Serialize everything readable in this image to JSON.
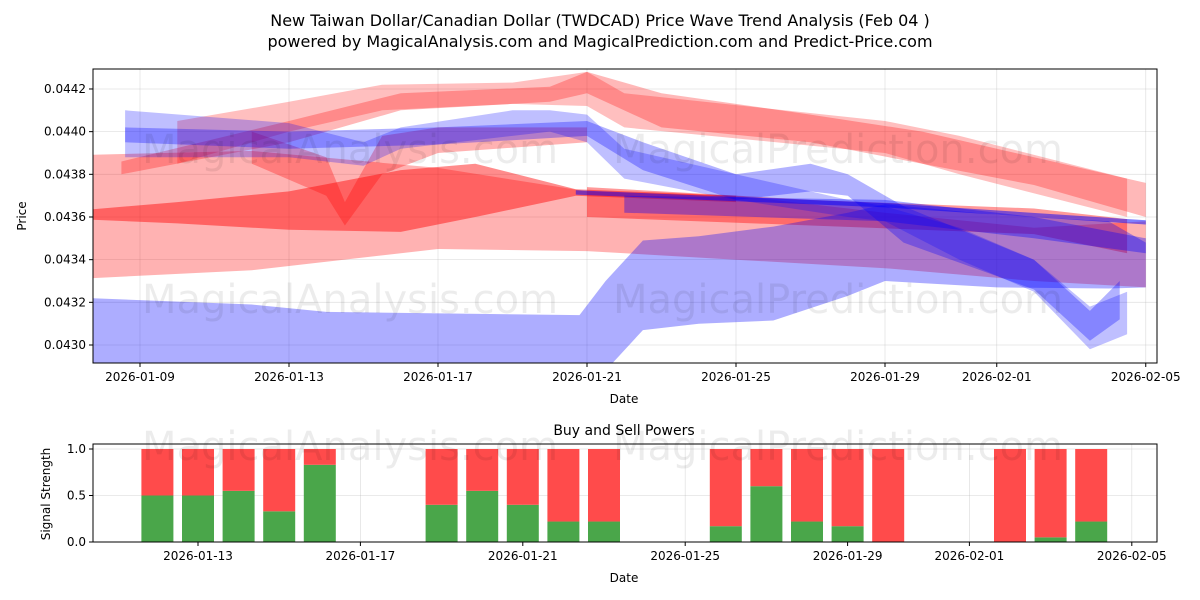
{
  "title_line1": "New Taiwan Dollar/Canadian Dollar (TWDCAD) Price Wave Trend Analysis (Feb 04 )",
  "title_line2": "powered by MagicalAnalysis.com and MagicalPrediction.com and Predict-Price.com",
  "watermarks": [
    "MagicalAnalysis.com",
    "MagicalPrediction.com"
  ],
  "colors": {
    "red": "#ff0000",
    "blue": "#0000ff",
    "buy": "#4aa64a",
    "sell": "#ff4b4b"
  },
  "chart_data": [
    {
      "type": "area",
      "title": "",
      "xlabel": "Date",
      "ylabel": "Price",
      "x_origin": "2026-01-09",
      "x_unit": "days since x_origin",
      "xlim": [
        -1.9,
        27.3
      ],
      "ylim": [
        0.0429,
        0.04428
      ],
      "grid": true,
      "xticks": [
        {
          "d": 0,
          "label": "2026-01-09"
        },
        {
          "d": 4,
          "label": "2026-01-13"
        },
        {
          "d": 8,
          "label": "2026-01-17"
        },
        {
          "d": 12,
          "label": "2026-01-21"
        },
        {
          "d": 16,
          "label": "2026-01-25"
        },
        {
          "d": 20,
          "label": "2026-01-29"
        },
        {
          "d": 23,
          "label": "2026-02-01"
        },
        {
          "d": 27,
          "label": "2026-02-05"
        }
      ],
      "yticks": [
        {
          "v": 0.043,
          "label": "0.0430"
        },
        {
          "v": 0.0432,
          "label": "0.0432"
        },
        {
          "v": 0.0434,
          "label": "0.0434"
        },
        {
          "v": 0.0436,
          "label": "0.0436"
        },
        {
          "v": 0.0438,
          "label": "0.0438"
        },
        {
          "v": 0.044,
          "label": "0.0440"
        },
        {
          "v": 0.0442,
          "label": "0.0442"
        }
      ],
      "bands": [
        {
          "color": "red",
          "opacity": 0.3,
          "points": [
            [
              -1.7,
              0.4331,
              0.4389
            ],
            [
              3,
              0.4335,
              0.4391
            ],
            [
              8,
              0.4345,
              0.4383
            ],
            [
              12,
              0.4344,
              0.4372
            ],
            [
              16,
              0.434,
              0.437
            ],
            [
              20,
              0.4336,
              0.4362
            ],
            [
              24,
              0.433,
              0.4355
            ],
            [
              27,
              0.4327,
              0.4358
            ]
          ]
        },
        {
          "color": "red",
          "opacity": 0.45,
          "points": [
            [
              -1.7,
              0.4359,
              0.4363
            ],
            [
              1,
              0.4357,
              0.4367
            ],
            [
              4,
              0.4354,
              0.4372
            ],
            [
              7,
              0.4353,
              0.4382
            ],
            [
              9,
              0.436,
              0.4385
            ],
            [
              11.7,
              0.437,
              0.4373
            ],
            [
              16,
              0.4367,
              0.437
            ]
          ]
        },
        {
          "color": "red",
          "opacity": 0.28,
          "points": [
            [
              -0.5,
              0.438,
              0.4386
            ],
            [
              4,
              0.4395,
              0.4405
            ],
            [
              7,
              0.441,
              0.4418
            ],
            [
              11,
              0.4414,
              0.4421
            ],
            [
              12,
              0.4418,
              0.4428
            ],
            [
              14,
              0.4402,
              0.4418
            ],
            [
              18,
              0.4395,
              0.4408
            ],
            [
              21,
              0.4385,
              0.44
            ],
            [
              24,
              0.4375,
              0.4388
            ],
            [
              27,
              0.436,
              0.4376
            ]
          ]
        },
        {
          "color": "red",
          "opacity": 0.25,
          "points": [
            [
              1,
              0.4385,
              0.4405
            ],
            [
              4,
              0.44,
              0.4414
            ],
            [
              6.5,
              0.441,
              0.4422
            ],
            [
              10,
              0.4413,
              0.4423
            ],
            [
              12,
              0.4412,
              0.4428
            ],
            [
              13,
              0.4402,
              0.4418
            ],
            [
              20,
              0.439,
              0.4405
            ],
            [
              22,
              0.438,
              0.4398
            ],
            [
              26.5,
              0.436,
              0.4378
            ]
          ]
        },
        {
          "color": "red",
          "opacity": 0.4,
          "points": [
            [
              12,
              0.436,
              0.4374
            ],
            [
              18,
              0.4356,
              0.4368
            ],
            [
              24,
              0.4352,
              0.4364
            ],
            [
              26.5,
              0.4343,
              0.4359
            ]
          ]
        },
        {
          "color": "red",
          "opacity": 0.3,
          "points": [
            [
              3,
              0.4385,
              0.44
            ],
            [
              5,
              0.437,
              0.4388
            ],
            [
              5.5,
              0.4356,
              0.4367
            ],
            [
              6.5,
              0.438,
              0.4398
            ],
            [
              8,
              0.439,
              0.4402
            ],
            [
              12,
              0.4395,
              0.4402
            ]
          ]
        },
        {
          "color": "blue",
          "opacity": 0.32,
          "points": [
            [
              -1.7,
              0.4288,
              0.43222
            ],
            [
              3,
              0.4288,
              0.4319
            ],
            [
              5,
              0.4288,
              0.43155
            ],
            [
              11.8,
              0.4288,
              0.4314
            ],
            [
              12.5,
              0.4288,
              0.433
            ],
            [
              13.5,
              0.4307,
              0.4349
            ],
            [
              15,
              0.431,
              0.4351
            ],
            [
              17,
              0.43115,
              0.43555
            ],
            [
              19,
              0.4323,
              0.4362
            ],
            [
              20,
              0.433,
              0.4366
            ],
            [
              23,
              0.4327,
              0.4361
            ],
            [
              26,
              0.43265,
              0.4358
            ],
            [
              27,
              0.4327,
              0.4348
            ]
          ]
        },
        {
          "color": "blue",
          "opacity": 0.25,
          "points": [
            [
              -0.4,
              0.4388,
              0.441
            ],
            [
              4,
              0.4388,
              0.4404
            ],
            [
              6,
              0.4384,
              0.4395
            ],
            [
              7,
              0.4392,
              0.4402
            ],
            [
              10,
              0.4398,
              0.441
            ],
            [
              11,
              0.44,
              0.441
            ],
            [
              12,
              0.4395,
              0.4408
            ],
            [
              13,
              0.4378,
              0.4392
            ],
            [
              16,
              0.4368,
              0.438
            ],
            [
              19,
              0.436,
              0.4368
            ],
            [
              20,
              0.4358,
              0.4365
            ],
            [
              22,
              0.434,
              0.4355
            ],
            [
              24,
              0.4325,
              0.434
            ],
            [
              25.5,
              0.4298,
              0.4318
            ],
            [
              26.5,
              0.4305,
              0.4325
            ]
          ]
        },
        {
          "color": "blue",
          "opacity": 0.3,
          "points": [
            [
              -0.4,
              0.4395,
              0.4402
            ],
            [
              4,
              0.4392,
              0.44
            ],
            [
              8,
              0.4394,
              0.4402
            ],
            [
              12,
              0.4398,
              0.4405
            ],
            [
              13.5,
              0.4382,
              0.4395
            ],
            [
              16,
              0.4368,
              0.438
            ],
            [
              18,
              0.4372,
              0.4385
            ],
            [
              19,
              0.437,
              0.438
            ],
            [
              20.5,
              0.4348,
              0.4365
            ],
            [
              24,
              0.4326,
              0.434
            ],
            [
              25.5,
              0.4302,
              0.4316
            ],
            [
              26.3,
              0.4312,
              0.433
            ]
          ]
        },
        {
          "color": "blue",
          "opacity": 0.5,
          "points": [
            [
              11.7,
              0.43705,
              0.43725
            ],
            [
              20,
              0.43645,
              0.43665
            ],
            [
              27,
              0.43565,
              0.43585
            ]
          ]
        },
        {
          "color": "blue",
          "opacity": 0.35,
          "points": [
            [
              13,
              0.4362,
              0.437
            ],
            [
              20,
              0.4358,
              0.4368
            ],
            [
              24,
              0.435,
              0.436
            ],
            [
              27,
              0.4343,
              0.435
            ]
          ]
        }
      ]
    },
    {
      "type": "bar",
      "title": "Buy and Sell Powers",
      "xlabel": "Date",
      "ylabel": "Signal Strength",
      "x_origin": "2026-01-13",
      "xlim": [
        -5.0,
        26.3
      ],
      "ylim": [
        0,
        1.05
      ],
      "xticks": [
        {
          "d": 0,
          "label": "2026-01-13"
        },
        {
          "d": 4,
          "label": "2026-01-17"
        },
        {
          "d": 8,
          "label": "2026-01-21"
        },
        {
          "d": 12,
          "label": "2026-01-25"
        },
        {
          "d": 16,
          "label": "2026-01-29"
        },
        {
          "d": 19,
          "label": "2026-02-01"
        },
        {
          "d": 23,
          "label": "2026-02-05"
        }
      ],
      "yticks": [
        {
          "v": 0,
          "label": "0.0"
        },
        {
          "v": 0.5,
          "label": "0.5"
        },
        {
          "v": 1,
          "label": "1.0"
        }
      ],
      "categories": [
        "2026-01-12",
        "2026-01-13",
        "2026-01-14",
        "2026-01-15",
        "2026-01-16",
        "2026-01-19",
        "2026-01-20",
        "2026-01-21",
        "2026-01-22",
        "2026-01-23",
        "2026-01-26",
        "2026-01-27",
        "2026-01-28",
        "2026-01-29",
        "2026-01-30",
        "2026-02-02",
        "2026-02-03",
        "2026-02-04"
      ],
      "day_offsets": [
        -1,
        0,
        1,
        2,
        3,
        6,
        7,
        8,
        9,
        10,
        13,
        14,
        15,
        16,
        17,
        20,
        21,
        22
      ],
      "series": [
        {
          "name": "Buy",
          "values": [
            0.5,
            0.5,
            0.55,
            0.33,
            0.83,
            0.4,
            0.55,
            0.4,
            0.22,
            0.22,
            0.17,
            0.6,
            0.22,
            0.17,
            0.0,
            0.0,
            0.05,
            0.22
          ]
        },
        {
          "name": "Sell",
          "values": [
            0.5,
            0.5,
            0.45,
            0.67,
            0.17,
            0.6,
            0.45,
            0.6,
            0.78,
            0.78,
            0.83,
            0.4,
            0.78,
            0.83,
            1.0,
            1.0,
            0.95,
            0.78
          ]
        }
      ]
    }
  ]
}
